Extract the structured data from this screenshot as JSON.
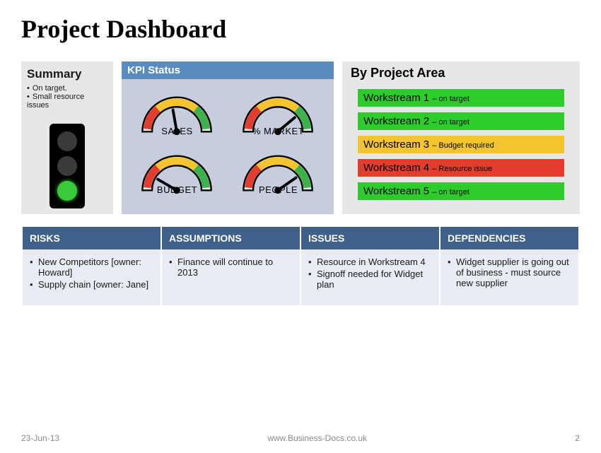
{
  "title": "Project Dashboard",
  "summary": {
    "heading": "Summary",
    "items": [
      "On target.",
      "Small resource issues"
    ],
    "traffic_light": {
      "red": "#3a3a3a",
      "amber": "#3a3a3a",
      "green": "#39c939"
    }
  },
  "kpi": {
    "heading": "KPI Status",
    "panel_bg": "#c6cede",
    "header_bg": "#5a8cbf",
    "gauges": [
      {
        "label": "SALES",
        "angle": -10,
        "colors": {
          "red": "#e43d2e",
          "amber": "#f4c430",
          "green": "#3cb34a"
        }
      },
      {
        "label": "% MARKET",
        "angle": 50,
        "colors": {
          "red": "#e43d2e",
          "amber": "#f4c430",
          "green": "#3cb34a"
        }
      },
      {
        "label": "BUDGET",
        "angle": -60,
        "colors": {
          "red": "#e43d2e",
          "amber": "#f4c430",
          "green": "#3cb34a"
        }
      },
      {
        "label": "PEOPLE",
        "angle": 55,
        "colors": {
          "red": "#e43d2e",
          "amber": "#f4c430",
          "green": "#3cb34a"
        }
      }
    ]
  },
  "area": {
    "heading": "By Project Area",
    "workstreams": [
      {
        "name": "Workstream 1",
        "status": "– on target",
        "bg": "#2dcc2d"
      },
      {
        "name": "Workstream 2",
        "status": "– on target",
        "bg": "#2dcc2d"
      },
      {
        "name": "Workstream 3",
        "status": "– Budget  required",
        "bg": "#f4c430"
      },
      {
        "name": "Workstream 4",
        "status": "– Resource  issue",
        "bg": "#e43d2e"
      },
      {
        "name": "Workstream 5",
        "status": "– on target",
        "bg": "#2dcc2d"
      }
    ]
  },
  "raid": {
    "header_bg": "#3e6089",
    "cell_bg": "#e9edf3",
    "columns": [
      {
        "title": "RISKS",
        "items": [
          "New Competitors [owner: Howard]",
          "Supply chain [owner: Jane]"
        ]
      },
      {
        "title": "ASSUMPTIONS",
        "items": [
          "Finance  will continue to 2013"
        ]
      },
      {
        "title": "ISSUES",
        "items": [
          "Resource in Workstream 4",
          "Signoff needed for Widget plan"
        ]
      },
      {
        "title": "DEPENDENCIES",
        "items": [
          "Widget supplier is going out of business - must source new supplier"
        ]
      }
    ]
  },
  "footer": {
    "date": "23-Jun-13",
    "source": "www.Business-Docs.co.uk",
    "page": "2"
  }
}
